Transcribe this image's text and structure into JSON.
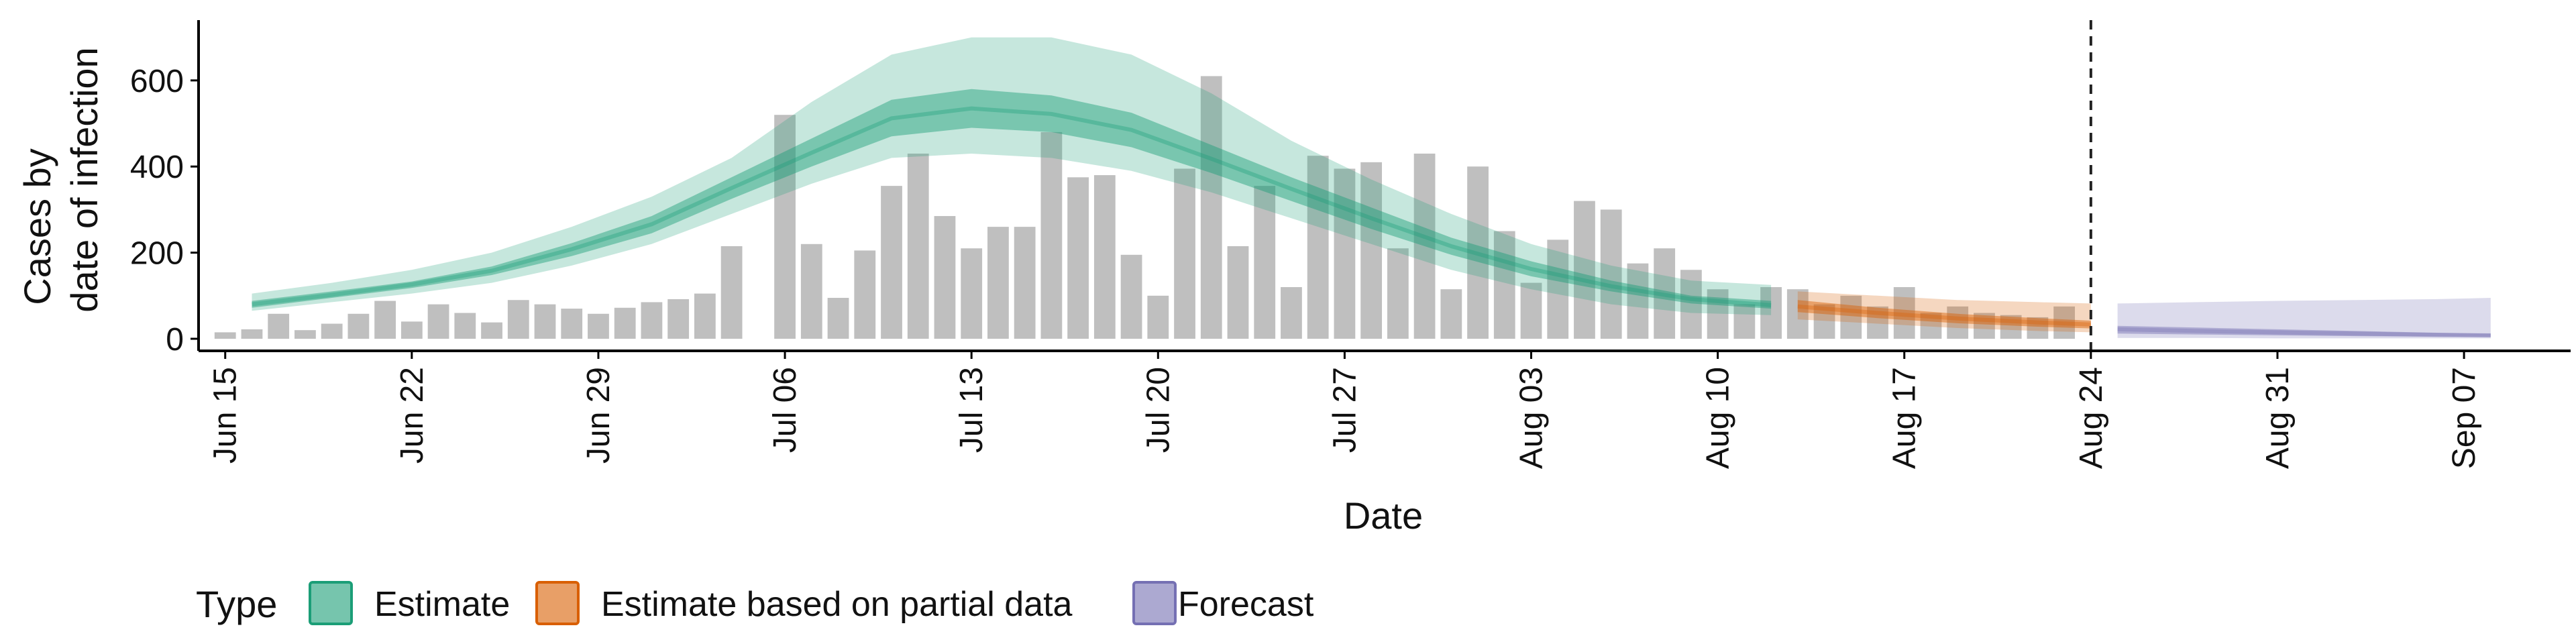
{
  "chart_data": {
    "type": "bar",
    "xlabel": "Date",
    "ylabel_lines": [
      "Cases by",
      "date of infection"
    ],
    "ylim": [
      0,
      740
    ],
    "yticks": [
      0,
      200,
      400,
      600
    ],
    "x_start": "2020-06-14",
    "x_end": "2020-09-11",
    "xticks": [
      {
        "date": "2020-06-15",
        "label": "Jun 15"
      },
      {
        "date": "2020-06-22",
        "label": "Jun 22"
      },
      {
        "date": "2020-06-29",
        "label": "Jun 29"
      },
      {
        "date": "2020-07-06",
        "label": "Jul 06"
      },
      {
        "date": "2020-07-13",
        "label": "Jul 13"
      },
      {
        "date": "2020-07-20",
        "label": "Jul 20"
      },
      {
        "date": "2020-07-27",
        "label": "Jul 27"
      },
      {
        "date": "2020-08-03",
        "label": "Aug 03"
      },
      {
        "date": "2020-08-10",
        "label": "Aug 10"
      },
      {
        "date": "2020-08-17",
        "label": "Aug 17"
      },
      {
        "date": "2020-08-24",
        "label": "Aug 24"
      },
      {
        "date": "2020-08-31",
        "label": "Aug 31"
      },
      {
        "date": "2020-09-07",
        "label": "Sep 07"
      }
    ],
    "vline_date": "2020-08-24",
    "bars_start": "2020-06-15",
    "bar_values": [
      15,
      22,
      58,
      20,
      35,
      58,
      88,
      40,
      80,
      60,
      38,
      90,
      80,
      70,
      58,
      72,
      85,
      92,
      105,
      215,
      0,
      520,
      220,
      95,
      205,
      355,
      430,
      285,
      210,
      260,
      260,
      480,
      375,
      380,
      195,
      100,
      395,
      610,
      215,
      355,
      120,
      425,
      395,
      410,
      210,
      430,
      115,
      400,
      250,
      130,
      230,
      320,
      300,
      175,
      210,
      160,
      115,
      80,
      120,
      115,
      80,
      100,
      75,
      120,
      60,
      75,
      60,
      55,
      50,
      75
    ],
    "series": [
      {
        "name": "Estimate",
        "color": "#1b9e77",
        "dates": [
          "2020-06-16",
          "2020-06-19",
          "2020-06-22",
          "2020-06-25",
          "2020-06-28",
          "2020-07-01",
          "2020-07-04",
          "2020-07-07",
          "2020-07-10",
          "2020-07-13",
          "2020-07-16",
          "2020-07-19",
          "2020-07-22",
          "2020-07-25",
          "2020-07-28",
          "2020-07-31",
          "2020-08-03",
          "2020-08-06",
          "2020-08-09",
          "2020-08-12"
        ],
        "lower90": [
          65,
          85,
          105,
          130,
          170,
          220,
          290,
          360,
          420,
          430,
          420,
          390,
          340,
          280,
          220,
          160,
          115,
          80,
          60,
          55
        ],
        "upper90": [
          105,
          130,
          160,
          200,
          260,
          330,
          420,
          550,
          660,
          700,
          700,
          660,
          570,
          460,
          370,
          290,
          220,
          170,
          135,
          125
        ],
        "lower50": [
          72,
          95,
          118,
          148,
          192,
          245,
          325,
          400,
          470,
          490,
          480,
          445,
          385,
          320,
          255,
          195,
          145,
          110,
          82,
          70
        ],
        "upper50": [
          88,
          110,
          133,
          168,
          222,
          285,
          375,
          465,
          555,
          580,
          565,
          525,
          450,
          375,
          305,
          235,
          180,
          135,
          100,
          88
        ],
        "median": [
          80,
          102,
          126,
          158,
          208,
          266,
          350,
          432,
          512,
          535,
          522,
          485,
          418,
          348,
          280,
          215,
          162,
          122,
          92,
          78
        ]
      },
      {
        "name": "Estimate based on partial data",
        "color": "#d95f02",
        "dates": [
          "2020-08-13",
          "2020-08-16",
          "2020-08-19",
          "2020-08-22",
          "2020-08-24"
        ],
        "lower90": [
          45,
          35,
          25,
          18,
          15
        ],
        "upper90": [
          110,
          100,
          90,
          85,
          82
        ],
        "lower50": [
          62,
          48,
          36,
          28,
          24
        ],
        "upper50": [
          90,
          72,
          58,
          48,
          42
        ],
        "median": [
          75,
          60,
          47,
          38,
          33
        ]
      },
      {
        "name": "Forecast",
        "color": "#7570b3",
        "dates": [
          "2020-08-25",
          "2020-08-28",
          "2020-08-31",
          "2020-09-03",
          "2020-09-06",
          "2020-09-08"
        ],
        "lower90": [
          2,
          2,
          1,
          1,
          1,
          1
        ],
        "upper90": [
          82,
          85,
          88,
          90,
          92,
          95
        ],
        "lower50": [
          12,
          10,
          8,
          6,
          5,
          4
        ],
        "upper50": [
          30,
          26,
          22,
          18,
          14,
          12
        ],
        "median": [
          22,
          18,
          15,
          12,
          9,
          8
        ]
      }
    ],
    "legend": {
      "title": "Type",
      "position": "bottom-left",
      "items": [
        {
          "label": "Estimate",
          "color": "#1b9e77"
        },
        {
          "label": "Estimate based on partial data",
          "color": "#d95f02"
        },
        {
          "label": "Forecast",
          "color": "#7570b3"
        }
      ]
    },
    "grid": false
  }
}
